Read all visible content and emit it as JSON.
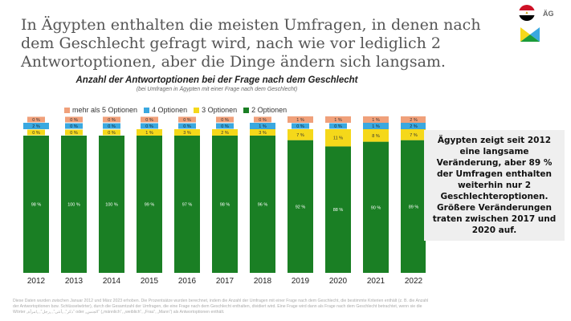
{
  "header": {
    "title": "In Ägypten enthalten die meisten Umfragen, in denen nach dem Geschlecht gefragt wird, nach wie vor lediglich 2 Antwortoptionen, aber die Dinge ändern sich langsam.",
    "country_code": "ÄG"
  },
  "chart_data": {
    "type": "bar",
    "stacked": true,
    "title": "Anzahl der Antwortoptionen bei der Frage nach dem Geschlecht",
    "subtitle": "(bei Umfragen in Ägypten mit einer Frage nach dem Geschlecht)",
    "categories": [
      "2012",
      "2013",
      "2014",
      "2015",
      "2016",
      "2017",
      "2018",
      "2019",
      "2020",
      "2021",
      "2022"
    ],
    "legend_position": "top",
    "series": [
      {
        "name": "2 Optionen",
        "color": "#1a7f24",
        "values": [
          98,
          100,
          100,
          99,
          97,
          98,
          96,
          92,
          88,
          90,
          89
        ]
      },
      {
        "name": "3 Optionen",
        "color": "#f5d81a",
        "values": [
          0,
          0,
          0,
          1,
          3,
          2,
          3,
          7,
          11,
          8,
          7
        ]
      },
      {
        "name": "4 Optionen",
        "color": "#3aa8e0",
        "values": [
          2,
          0,
          0,
          0,
          0,
          0,
          1,
          0,
          0,
          1,
          2
        ]
      },
      {
        "name": "mehr als 5 Optionen",
        "color": "#f0a07a",
        "values": [
          0,
          0,
          0,
          0,
          0,
          0,
          0,
          1,
          1,
          1,
          2
        ]
      }
    ],
    "legend_order": [
      3,
      2,
      1,
      0
    ],
    "value_suffix": " %",
    "ylim": [
      0,
      100
    ],
    "grid": false
  },
  "note": "Ägypten zeigt seit 2012 eine langsame Veränderung, aber 89 % der Umfragen enthalten weiterhin nur 2 Geschlechteroptionen. Größere Veränderungen traten zwischen 2017 und 2020 auf.",
  "footnote": "Diese Daten wurden zwischen Januar 2012 und März 2023 erhoben. Die Prozentsätze wurden berechnet, indem die Anzahl der Umfragen mit einer Frage nach dem Geschlecht, die bestimmte Kriterien enthält (z. B. die Anzahl der Antwortoptionen bzw. Schlüsselwörter), durch die Gesamtzahl der Umfragen, die eine Frage nach dem Geschlecht enthalten, dividiert wird. Eine Frage wird dann als Frage nach dem Geschlecht betrachtet, wenn sie die Wörter „ذكر“, „أنثى“, „رجل“, „امرأة“ oder „الجنس“ („männlich“, „weiblich“, „Frau“, „Mann“) als Antwortoptionen enthält."
}
